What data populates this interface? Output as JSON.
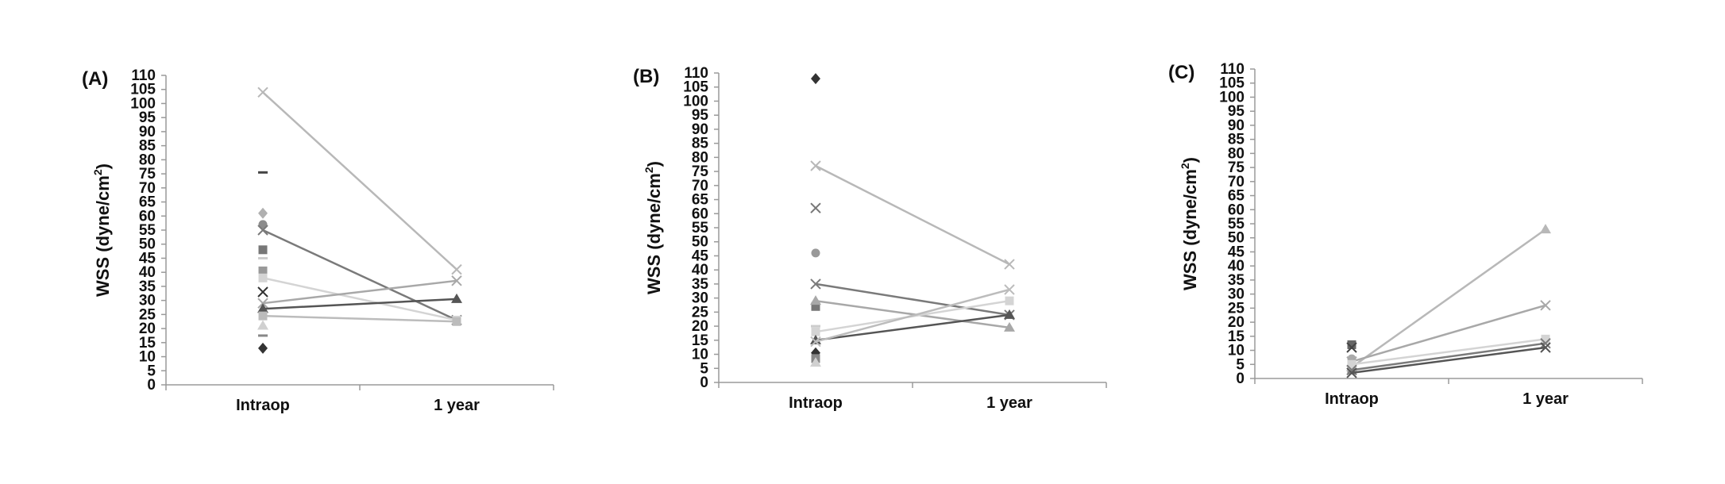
{
  "chart_data": [
    {
      "type": "line",
      "panel_label": "(A)",
      "ylabel": "WSS (dyne/cm",
      "ylabel_sup": "2",
      "ylabel_end": ")",
      "categories": [
        "Intraop",
        "1 year"
      ],
      "ylim": [
        0,
        110
      ],
      "ytick_step": 5,
      "lines": [
        {
          "values": [
            104,
            41
          ],
          "color": "#b8b8b8",
          "marker": "x"
        },
        {
          "values": [
            55,
            23
          ],
          "color": "#7a7a7a",
          "marker": "x"
        },
        {
          "values": [
            38,
            23
          ],
          "color": "#d4d4d4",
          "marker": "square"
        },
        {
          "values": [
            29,
            37
          ],
          "color": "#a8a8a8",
          "marker": "x"
        },
        {
          "values": [
            27,
            30.5
          ],
          "color": "#555555",
          "marker": "triangle"
        },
        {
          "values": [
            24.5,
            22.5
          ],
          "color": "#bcbcbc",
          "marker": "square"
        }
      ],
      "intraop_points": [
        {
          "value": 75.5,
          "color": "#444444",
          "marker": "dash"
        },
        {
          "value": 61,
          "color": "#b0b0b0",
          "marker": "diamond"
        },
        {
          "value": 57,
          "color": "#8c8c8c",
          "marker": "circle"
        },
        {
          "value": 48,
          "color": "#777777",
          "marker": "square"
        },
        {
          "value": 45,
          "color": "#cccccc",
          "marker": "dash"
        },
        {
          "value": 40.5,
          "color": "#999999",
          "marker": "square"
        },
        {
          "value": 33,
          "color": "#333333",
          "marker": "x"
        },
        {
          "value": 21,
          "color": "#d0d0d0",
          "marker": "triangle"
        },
        {
          "value": 17.5,
          "color": "#888888",
          "marker": "dash"
        },
        {
          "value": 13,
          "color": "#333333",
          "marker": "diamond"
        }
      ]
    },
    {
      "type": "line",
      "panel_label": "(B)",
      "ylabel": "WSS (dyne/cm",
      "ylabel_sup": "2",
      "ylabel_end": ")",
      "categories": [
        "Intraop",
        "1 year"
      ],
      "ylim": [
        0,
        110
      ],
      "ytick_step": 5,
      "lines": [
        {
          "values": [
            77,
            42
          ],
          "color": "#b8b8b8",
          "marker": "x"
        },
        {
          "values": [
            35,
            24
          ],
          "color": "#7a7a7a",
          "marker": "x"
        },
        {
          "values": [
            29,
            19.5
          ],
          "color": "#a8a8a8",
          "marker": "triangle"
        },
        {
          "values": [
            18,
            29
          ],
          "color": "#d4d4d4",
          "marker": "square"
        },
        {
          "values": [
            15,
            24
          ],
          "color": "#555555",
          "marker": "triangle"
        },
        {
          "values": [
            14.5,
            33
          ],
          "color": "#bcbcbc",
          "marker": "x"
        }
      ],
      "intraop_points": [
        {
          "value": 108,
          "color": "#333333",
          "marker": "diamond"
        },
        {
          "value": 62,
          "color": "#777777",
          "marker": "x"
        },
        {
          "value": 46,
          "color": "#999999",
          "marker": "circle"
        },
        {
          "value": 27,
          "color": "#777777",
          "marker": "square"
        },
        {
          "value": 20,
          "color": "#cccccc",
          "marker": "dash"
        },
        {
          "value": 10.5,
          "color": "#333333",
          "marker": "diamond"
        },
        {
          "value": 8.5,
          "color": "#888888",
          "marker": "square"
        },
        {
          "value": 7,
          "color": "#d0d0d0",
          "marker": "triangle"
        }
      ]
    },
    {
      "type": "line",
      "panel_label": "(C)",
      "ylabel": "WSS (dyne/cm",
      "ylabel_sup": "2",
      "ylabel_end": ")",
      "categories": [
        "Intraop",
        "1 year"
      ],
      "ylim": [
        0,
        110
      ],
      "ytick_step": 5,
      "lines": [
        {
          "values": [
            4,
            53
          ],
          "color": "#b8b8b8",
          "marker": "triangle"
        },
        {
          "values": [
            6,
            26
          ],
          "color": "#a8a8a8",
          "marker": "x"
        },
        {
          "values": [
            5,
            14
          ],
          "color": "#d4d4d4",
          "marker": "square"
        },
        {
          "values": [
            3,
            12.5
          ],
          "color": "#7a7a7a",
          "marker": "x"
        },
        {
          "values": [
            2,
            11
          ],
          "color": "#555555",
          "marker": "x"
        }
      ],
      "intraop_points": [
        {
          "value": 12,
          "color": "#666666",
          "marker": "square"
        },
        {
          "value": 11,
          "color": "#444444",
          "marker": "x"
        },
        {
          "value": 7,
          "color": "#aaaaaa",
          "marker": "circle"
        },
        {
          "value": 3,
          "color": "#888888",
          "marker": "square"
        }
      ]
    }
  ]
}
